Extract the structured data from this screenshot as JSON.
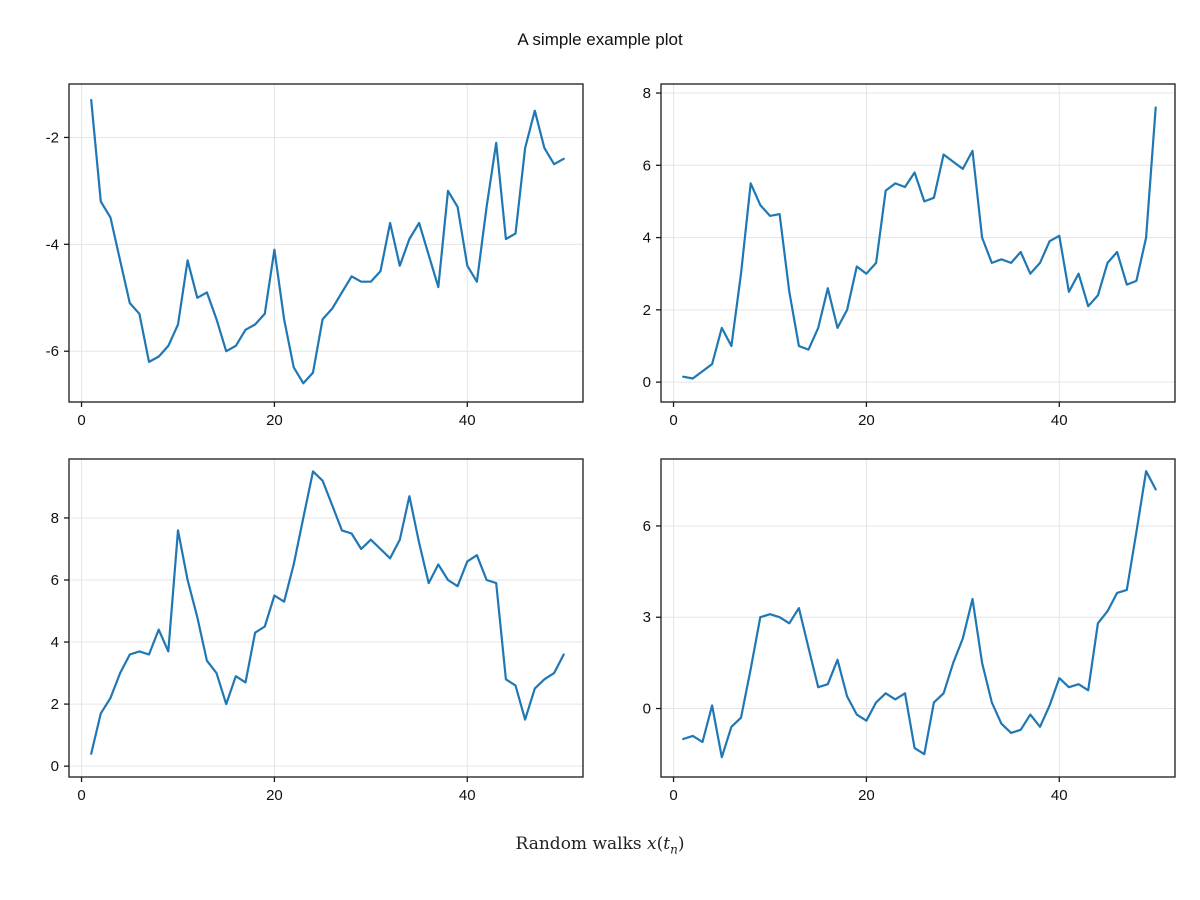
{
  "figure": {
    "title": "A simple example plot",
    "xlabel_text": "Random walks ",
    "xlabel_math": {
      "x": "x",
      "lparen": "(",
      "t": "t",
      "sub": "n",
      "rparen": ")"
    }
  },
  "style": {
    "line_color": "#1f77b4",
    "grid_color": "#e5e5e5",
    "axis_color": "#1a1a1a",
    "tick_label_color": "#111111",
    "background": "#ffffff"
  },
  "chart_data": [
    {
      "name": "subplot-top-left",
      "type": "line",
      "x_start": 1,
      "x_step": 1,
      "xlim": [
        -1.3,
        52
      ],
      "ylim": [
        -6.95,
        -1.0
      ],
      "xticks": [
        0,
        20,
        40
      ],
      "yticks": [
        -2,
        -4,
        -6
      ],
      "values": [
        -1.3,
        -3.2,
        -3.5,
        -4.3,
        -5.1,
        -5.3,
        -6.2,
        -6.1,
        -5.9,
        -5.5,
        -4.3,
        -5.0,
        -4.9,
        -5.4,
        -6.0,
        -5.9,
        -5.6,
        -5.5,
        -5.3,
        -4.1,
        -5.4,
        -6.3,
        -6.6,
        -6.4,
        -5.4,
        -5.2,
        -4.9,
        -4.6,
        -4.7,
        -4.7,
        -4.5,
        -3.6,
        -4.4,
        -3.9,
        -3.6,
        -4.2,
        -4.8,
        -3.0,
        -3.3,
        -4.4,
        -4.7,
        -3.3,
        -2.1,
        -3.9,
        -3.8,
        -2.2,
        -1.5,
        -2.2,
        -2.5,
        -2.4
      ]
    },
    {
      "name": "subplot-top-right",
      "type": "line",
      "x_start": 1,
      "x_step": 1,
      "xlim": [
        -1.3,
        52
      ],
      "ylim": [
        -0.55,
        8.25
      ],
      "xticks": [
        0,
        20,
        40
      ],
      "yticks": [
        0,
        2,
        4,
        6,
        8
      ],
      "values": [
        0.15,
        0.1,
        0.3,
        0.5,
        1.5,
        1.0,
        3.0,
        5.5,
        4.9,
        4.6,
        4.65,
        2.5,
        1.0,
        0.9,
        1.5,
        2.6,
        1.5,
        2.0,
        3.2,
        3.0,
        3.3,
        5.3,
        5.5,
        5.4,
        5.8,
        5.0,
        5.1,
        6.3,
        6.1,
        5.9,
        6.4,
        4.0,
        3.3,
        3.4,
        3.3,
        3.6,
        3.0,
        3.3,
        3.9,
        4.05,
        2.5,
        3.0,
        2.1,
        2.4,
        3.3,
        3.6,
        2.7,
        2.8,
        4.0,
        7.6
      ]
    },
    {
      "name": "subplot-bottom-left",
      "type": "line",
      "x_start": 1,
      "x_step": 1,
      "xlim": [
        -1.3,
        52
      ],
      "ylim": [
        -0.35,
        9.9
      ],
      "xticks": [
        0,
        20,
        40
      ],
      "yticks": [
        0,
        2,
        4,
        6,
        8
      ],
      "values": [
        0.4,
        1.7,
        2.2,
        3.0,
        3.6,
        3.7,
        3.6,
        4.4,
        3.7,
        7.6,
        6.0,
        4.8,
        3.4,
        3.0,
        2.0,
        2.9,
        2.7,
        4.3,
        4.5,
        5.5,
        5.3,
        6.5,
        8.0,
        9.5,
        9.2,
        8.4,
        7.6,
        7.5,
        7.0,
        7.3,
        7.0,
        6.7,
        7.3,
        8.7,
        7.2,
        5.9,
        6.5,
        6.0,
        5.8,
        6.6,
        6.8,
        6.0,
        5.9,
        2.8,
        2.6,
        1.5,
        2.5,
        2.8,
        3.0,
        3.6
      ]
    },
    {
      "name": "subplot-bottom-right",
      "type": "line",
      "x_start": 1,
      "x_step": 1,
      "xlim": [
        -1.3,
        52
      ],
      "ylim": [
        -2.25,
        8.2
      ],
      "xticks": [
        0,
        20,
        40
      ],
      "yticks": [
        0,
        3,
        6
      ],
      "values": [
        -1.0,
        -0.9,
        -1.1,
        0.1,
        -1.6,
        -0.6,
        -0.3,
        1.3,
        3.0,
        3.1,
        3.0,
        2.8,
        3.3,
        2.0,
        0.7,
        0.8,
        1.6,
        0.4,
        -0.2,
        -0.4,
        0.2,
        0.5,
        0.3,
        0.5,
        -1.3,
        -1.5,
        0.2,
        0.5,
        1.5,
        2.3,
        3.6,
        1.5,
        0.2,
        -0.5,
        -0.8,
        -0.7,
        -0.2,
        -0.6,
        0.1,
        1.0,
        0.7,
        0.8,
        0.6,
        2.8,
        3.2,
        3.8,
        3.9,
        5.8,
        7.8,
        7.2
      ]
    }
  ]
}
